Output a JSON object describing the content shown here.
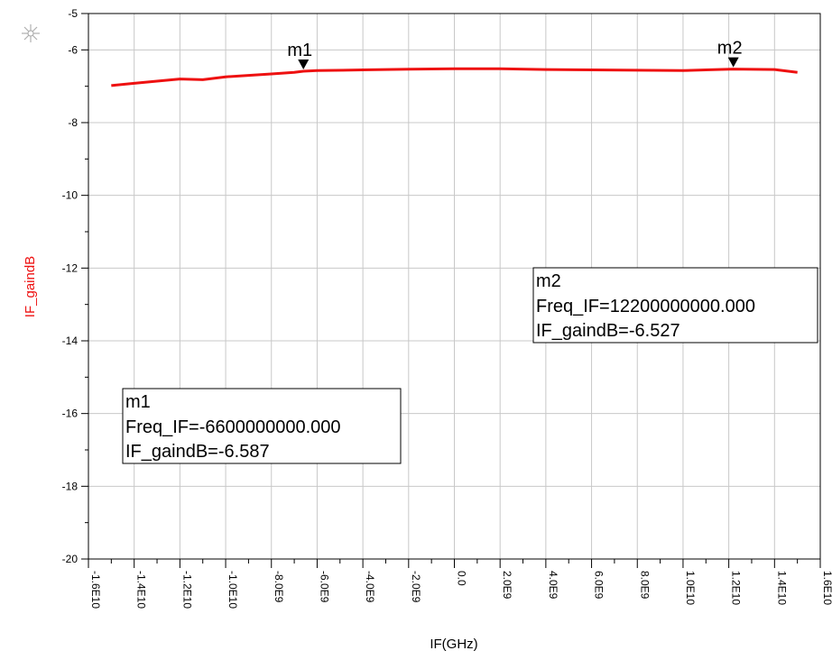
{
  "chart_data": {
    "type": "line",
    "xlabel": "IF(GHz)",
    "ylabel": "IF_gaindB",
    "xlim": [
      -16000000000,
      16000000000
    ],
    "ylim": [
      -20,
      -5
    ],
    "x_ticks": [
      -16000000000,
      -14000000000,
      -12000000000,
      -10000000000,
      -8000000000,
      -6000000000,
      -4000000000,
      -2000000000,
      0,
      2000000000,
      4000000000,
      6000000000,
      8000000000,
      10000000000,
      12000000000,
      14000000000,
      16000000000
    ],
    "x_tick_labels": [
      "-1.6E10",
      "-1.4E10",
      "-1.2E10",
      "-1.0E10",
      "-8.0E9",
      "-6.0E9",
      "-4.0E9",
      "-2.0E9",
      "0.0",
      "2.0E9",
      "4.0E9",
      "6.0E9",
      "8.0E9",
      "1.0E10",
      "1.2E10",
      "1.4E10",
      "1.6E10"
    ],
    "y_ticks": [
      -20,
      -18,
      -16,
      -14,
      -12,
      -10,
      -8,
      -6,
      -5
    ],
    "y_tick_labels": [
      "-20",
      "-18",
      "-16",
      "-14",
      "-12",
      "-10",
      "-8",
      "-6",
      "-5"
    ],
    "grid": true,
    "series": [
      {
        "color": "#ee1111",
        "x": [
          -15000000000,
          -14000000000,
          -13000000000,
          -12000000000,
          -11000000000,
          -10000000000,
          -9000000000,
          -8000000000,
          -7000000000,
          -6600000000,
          -6000000000,
          -4000000000,
          -2000000000,
          0,
          2000000000,
          4000000000,
          6000000000,
          8000000000,
          10000000000,
          11000000000,
          12200000000,
          14000000000,
          15000000000
        ],
        "y": [
          -6.98,
          -6.92,
          -6.86,
          -6.8,
          -6.82,
          -6.74,
          -6.7,
          -6.66,
          -6.62,
          -6.587,
          -6.57,
          -6.55,
          -6.53,
          -6.52,
          -6.52,
          -6.54,
          -6.55,
          -6.56,
          -6.57,
          -6.55,
          -6.527,
          -6.54,
          -6.62
        ]
      }
    ],
    "markers": [
      {
        "label": "m1",
        "x": -6600000000,
        "y": -6.587,
        "readout_freq": "Freq_IF=-6600000000.000",
        "readout_gain": "IF_gaindB=-6.587"
      },
      {
        "label": "m2",
        "x": 12200000000,
        "y": -6.527,
        "readout_freq": "Freq_IF=12200000000.000",
        "readout_gain": "IF_gaindB=-6.527"
      }
    ],
    "colors": {
      "series": "#ee1111",
      "ylabel": "#ee1111",
      "grid": "#c8c8c8",
      "axes": "#000000"
    }
  }
}
